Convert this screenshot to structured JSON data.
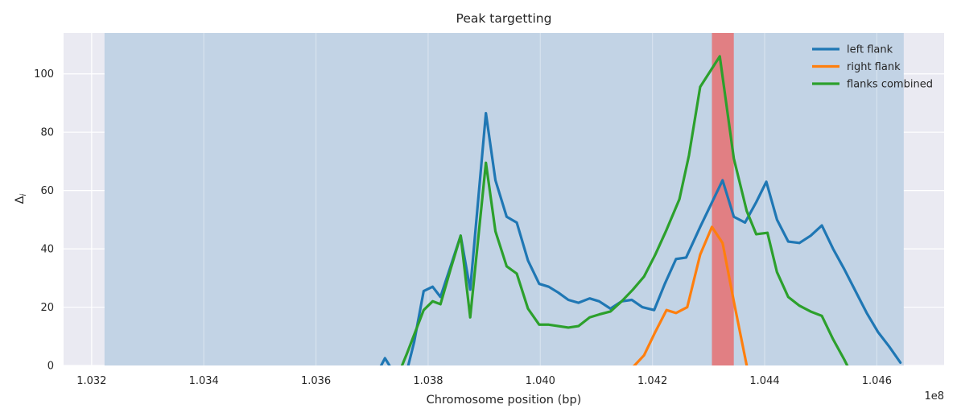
{
  "chart_data": {
    "type": "line",
    "title": "Peak targetting",
    "xlabel": "Chromosome position (bp)",
    "ylabel": "Δ",
    "ylabel_subscript": "i",
    "x_offset_label": "1e8",
    "xlim": [
      1.0315,
      1.0472
    ],
    "ylim": [
      0,
      114
    ],
    "xticks": [
      1.032,
      1.034,
      1.036,
      1.038,
      1.04,
      1.042,
      1.044,
      1.046
    ],
    "xtick_labels": [
      "1.032",
      "1.034",
      "1.036",
      "1.038",
      "1.040",
      "1.042",
      "1.044",
      "1.046"
    ],
    "yticks": [
      0,
      20,
      40,
      60,
      80,
      100
    ],
    "ytick_labels": [
      "0",
      "20",
      "40",
      "60",
      "80",
      "100"
    ],
    "grid": true,
    "legend_position": "top-right",
    "background_region": {
      "x_range": [
        1.03223,
        1.04648
      ],
      "color": "#c2d3e5"
    },
    "highlight_region": {
      "x_range": [
        1.04306,
        1.04345
      ],
      "color": "#e17f83"
    },
    "series": [
      {
        "name": "left flank",
        "color": "#1f77b4",
        "points": [
          [
            1.037,
            -6
          ],
          [
            1.03723,
            2.5
          ],
          [
            1.03747,
            -5
          ],
          [
            1.03762,
            -2
          ],
          [
            1.03775,
            8
          ],
          [
            1.03792,
            25.5
          ],
          [
            1.03808,
            27
          ],
          [
            1.03822,
            23.5
          ],
          [
            1.0384,
            34
          ],
          [
            1.03858,
            44.5
          ],
          [
            1.03875,
            26
          ],
          [
            1.03903,
            86.5
          ],
          [
            1.0392,
            63.5
          ],
          [
            1.0394,
            51
          ],
          [
            1.03958,
            49
          ],
          [
            1.03978,
            36
          ],
          [
            1.03998,
            28
          ],
          [
            1.04015,
            27
          ],
          [
            1.04032,
            25
          ],
          [
            1.0405,
            22.5
          ],
          [
            1.04068,
            21.5
          ],
          [
            1.04088,
            23
          ],
          [
            1.04105,
            22
          ],
          [
            1.04125,
            19.5
          ],
          [
            1.04145,
            22
          ],
          [
            1.04163,
            22.5
          ],
          [
            1.04182,
            20
          ],
          [
            1.04203,
            19
          ],
          [
            1.04222,
            28
          ],
          [
            1.04242,
            36.5
          ],
          [
            1.0426,
            37
          ],
          [
            1.04285,
            47.5
          ],
          [
            1.04325,
            63.5
          ],
          [
            1.04345,
            51
          ],
          [
            1.04365,
            49
          ],
          [
            1.04385,
            56
          ],
          [
            1.04403,
            63
          ],
          [
            1.04422,
            50
          ],
          [
            1.04442,
            42.5
          ],
          [
            1.04462,
            42
          ],
          [
            1.04482,
            44.5
          ],
          [
            1.04502,
            48
          ],
          [
            1.04522,
            40
          ],
          [
            1.04542,
            33
          ],
          [
            1.04562,
            25.5
          ],
          [
            1.04582,
            18
          ],
          [
            1.04602,
            11.5
          ],
          [
            1.04622,
            6.5
          ],
          [
            1.04642,
            1
          ]
        ]
      },
      {
        "name": "right flank",
        "color": "#ff7f0e",
        "points": [
          [
            1.04155,
            -2
          ],
          [
            1.04168,
            0
          ],
          [
            1.04185,
            3.5
          ],
          [
            1.04205,
            11.5
          ],
          [
            1.04225,
            19
          ],
          [
            1.04242,
            18
          ],
          [
            1.04262,
            20
          ],
          [
            1.04285,
            38
          ],
          [
            1.04306,
            47.5
          ],
          [
            1.04325,
            42
          ],
          [
            1.04345,
            22
          ],
          [
            1.04368,
            0
          ],
          [
            1.04372,
            -3
          ]
        ]
      },
      {
        "name": "flanks combined",
        "color": "#2ca02c",
        "points": [
          [
            1.03745,
            -4
          ],
          [
            1.03762,
            4
          ],
          [
            1.03792,
            19
          ],
          [
            1.03808,
            22
          ],
          [
            1.03822,
            21
          ],
          [
            1.0384,
            33
          ],
          [
            1.03858,
            44.5
          ],
          [
            1.03875,
            16.5
          ],
          [
            1.03903,
            69.5
          ],
          [
            1.0392,
            46
          ],
          [
            1.0394,
            34
          ],
          [
            1.03958,
            31.5
          ],
          [
            1.03978,
            19.5
          ],
          [
            1.03998,
            14
          ],
          [
            1.04015,
            14
          ],
          [
            1.04032,
            13.5
          ],
          [
            1.0405,
            13
          ],
          [
            1.04068,
            13.5
          ],
          [
            1.04088,
            16.5
          ],
          [
            1.04105,
            17.5
          ],
          [
            1.04125,
            18.5
          ],
          [
            1.04145,
            22
          ],
          [
            1.04165,
            26
          ],
          [
            1.04185,
            30.5
          ],
          [
            1.04205,
            38
          ],
          [
            1.04225,
            46.5
          ],
          [
            1.04248,
            57
          ],
          [
            1.04265,
            72
          ],
          [
            1.04285,
            95.5
          ],
          [
            1.0432,
            106
          ],
          [
            1.04345,
            71
          ],
          [
            1.04368,
            53
          ],
          [
            1.04385,
            45
          ],
          [
            1.04405,
            45.5
          ],
          [
            1.04422,
            32
          ],
          [
            1.04442,
            23.5
          ],
          [
            1.04462,
            20.5
          ],
          [
            1.04482,
            18.5
          ],
          [
            1.04502,
            17
          ],
          [
            1.04522,
            9
          ],
          [
            1.04542,
            2
          ],
          [
            1.04555,
            -3
          ]
        ]
      }
    ]
  }
}
